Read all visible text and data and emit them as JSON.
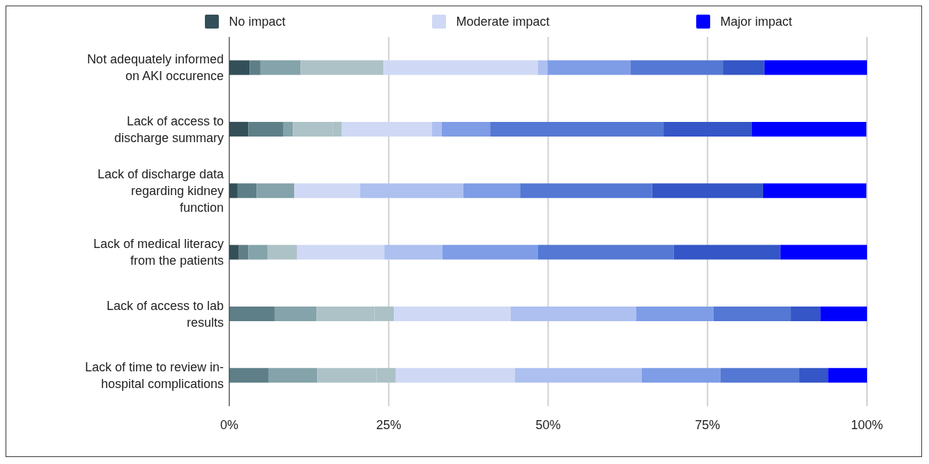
{
  "chart_data": {
    "type": "bar",
    "orientation": "horizontal",
    "stacked": true,
    "grid": "x",
    "legend": "top",
    "categories": [
      "Not adequately informed\non AKI occurence",
      "Lack of access to\ndischarge summary",
      "Lack of discharge data\nregarding kidney\nfunction",
      "Lack of medical literacy\nfrom the patients",
      "Lack of access to lab\nresults",
      "Lack of time to review in-\nhospital complications"
    ],
    "xlim": [
      0,
      100
    ],
    "xticks": [
      {
        "value": 0,
        "label": "0%"
      },
      {
        "value": 25,
        "label": "25%"
      },
      {
        "value": 50,
        "label": "50%"
      },
      {
        "value": 75,
        "label": "75%"
      },
      {
        "value": 100,
        "label": "100%"
      }
    ],
    "series": [
      {
        "name": "No impact",
        "color": "#335059",
        "values": [
          3.2,
          3.0,
          1.3,
          1.5,
          0,
          0
        ]
      },
      {
        "color": "#5e7f88",
        "values": [
          1.7,
          5.5,
          3.0,
          1.5,
          7.1,
          6.2
        ]
      },
      {
        "color": "#84a3aa",
        "values": [
          6.3,
          1.5,
          5.9,
          3.0,
          6.6,
          7.6
        ]
      },
      {
        "color": "#adc2c6",
        "values": [
          13.0,
          6.2,
          0,
          4.6,
          9.1,
          9.3
        ]
      },
      {
        "color": "#abc1c5",
        "values": [
          0,
          1.4,
          0,
          0,
          3.0,
          3.0
        ]
      },
      {
        "name": "Moderate impact",
        "color": "#cfd9f5",
        "values": [
          24.2,
          14.2,
          10.3,
          13.7,
          18.3,
          18.7
        ]
      },
      {
        "color": "#adc0f0",
        "values": [
          1.5,
          1.5,
          16.2,
          9.1,
          19.7,
          19.9
        ]
      },
      {
        "color": "#7e9de6",
        "values": [
          13.0,
          7.6,
          8.9,
          15.0,
          12.1,
          12.3
        ]
      },
      {
        "color": "#5478d3",
        "values": [
          14.5,
          27.2,
          20.7,
          21.3,
          12.1,
          12.4
        ]
      },
      {
        "color": "#3456c6",
        "values": [
          6.5,
          13.8,
          17.4,
          16.7,
          4.7,
          4.5
        ]
      },
      {
        "name": "Major impact",
        "color": "#0000ff",
        "values": [
          16.1,
          18.0,
          16.2,
          13.6,
          7.3,
          6.1
        ]
      }
    ]
  }
}
